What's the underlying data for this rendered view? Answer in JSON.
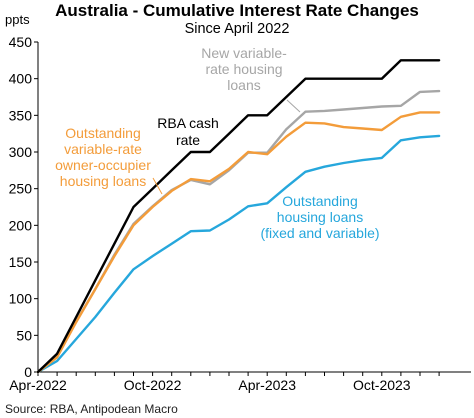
{
  "chart_data": {
    "type": "line",
    "title": "Australia - Cumulative Interest Rate Changes",
    "subtitle": "Since April 2022",
    "ylabel": "ppts",
    "ylim": [
      0,
      450
    ],
    "yticks": [
      0,
      50,
      100,
      150,
      200,
      250,
      300,
      350,
      400,
      450
    ],
    "xticks": [
      "Apr-2022",
      "Oct-2022",
      "Apr-2023",
      "Oct-2023"
    ],
    "x_months": [
      "Apr-2022",
      "May-2022",
      "Jun-2022",
      "Jul-2022",
      "Aug-2022",
      "Sep-2022",
      "Oct-2022",
      "Nov-2022",
      "Dec-2022",
      "Jan-2023",
      "Feb-2023",
      "Mar-2023",
      "Apr-2023",
      "May-2023",
      "Jun-2023",
      "Jul-2023",
      "Aug-2023",
      "Sep-2023",
      "Oct-2023",
      "Nov-2023",
      "Dec-2023",
      "Jan-2024"
    ],
    "grid": false,
    "legend": "inline labels",
    "source": "Source: RBA, Antipodean Macro",
    "series": [
      {
        "name": "RBA cash rate",
        "label_lines": [
          "RBA cash",
          "rate"
        ],
        "color": "#000000",
        "values": [
          0,
          25,
          75,
          125,
          175,
          225,
          250,
          275,
          300,
          300,
          325,
          350,
          350,
          375,
          400,
          400,
          400,
          400,
          400,
          425,
          425,
          425
        ]
      },
      {
        "name": "New variable-rate housing loans",
        "label_lines": [
          "New variable-",
          "rate housing",
          "loans"
        ],
        "color": "#a6a6a6",
        "values": [
          0,
          21,
          69,
          113,
          160,
          202,
          226,
          248,
          262,
          256,
          275,
          299,
          299,
          331,
          355,
          356,
          358,
          360,
          362,
          363,
          382,
          383
        ]
      },
      {
        "name": "Outstanding variable-rate owner-occupier housing loans",
        "label_lines": [
          "Outstanding",
          "variable-rate",
          "owner-occupier",
          "housing loans"
        ],
        "color": "#f39c3a",
        "values": [
          0,
          20,
          68,
          113,
          158,
          200,
          225,
          247,
          263,
          260,
          277,
          300,
          297,
          321,
          340,
          339,
          334,
          332,
          330,
          348,
          354,
          354
        ]
      },
      {
        "name": "Outstanding housing loans (fixed and variable)",
        "label_lines": [
          "Outstanding",
          "housing loans",
          "(fixed and variable)"
        ],
        "color": "#26a7dc",
        "values": [
          0,
          15,
          45,
          75,
          108,
          140,
          158,
          175,
          192,
          193,
          208,
          226,
          230,
          252,
          273,
          280,
          285,
          289,
          292,
          316,
          320,
          322
        ]
      }
    ]
  }
}
